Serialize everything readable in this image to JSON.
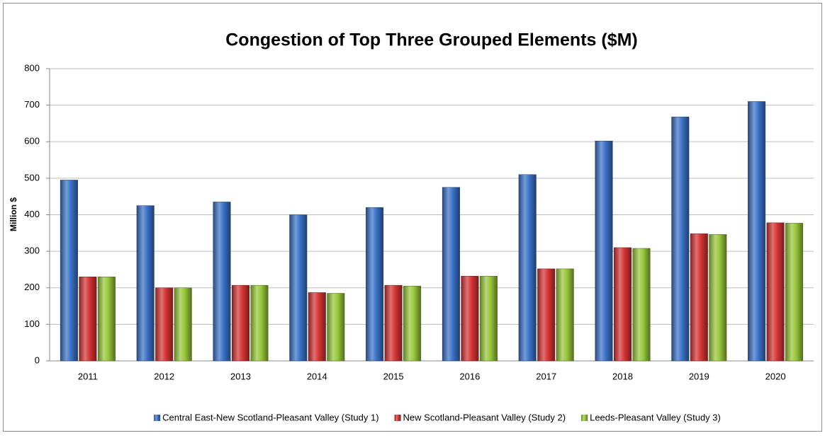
{
  "chart_data": {
    "type": "bar",
    "title": "Congestion of Top Three Grouped Elements ($M)",
    "y_label": "Million $",
    "categories": [
      "2011",
      "2012",
      "2013",
      "2014",
      "2015",
      "2016",
      "2017",
      "2018",
      "2019",
      "2020"
    ],
    "series": [
      {
        "name": "Central East-New Scotland-Pleasant Valley (Study 1)",
        "color": "#3a72c8",
        "values": [
          495,
          425,
          435,
          400,
          420,
          475,
          510,
          602,
          668,
          710
        ]
      },
      {
        "name": "New Scotland-Pleasant Valley (Study 2)",
        "color": "#d63434",
        "values": [
          230,
          200,
          207,
          187,
          207,
          232,
          252,
          310,
          348,
          378
        ]
      },
      {
        "name": "Leeds-Pleasant Valley (Study 3)",
        "color": "#98c83a",
        "values": [
          230,
          200,
          207,
          185,
          205,
          232,
          252,
          308,
          346,
          377
        ]
      }
    ],
    "ylim": [
      0,
      800
    ],
    "yticks": [
      0,
      100,
      200,
      300,
      400,
      500,
      600,
      700,
      800
    ],
    "grid": true,
    "legend": "bottom"
  }
}
